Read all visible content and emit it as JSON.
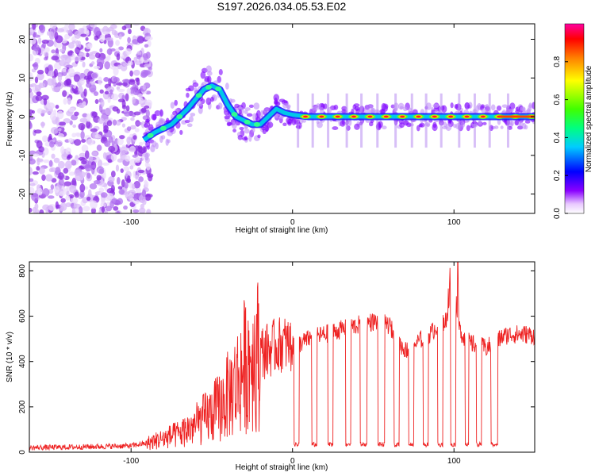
{
  "title": "S197.2026.034.05.53.E02",
  "colors": {
    "trace": "#ee2222",
    "axis": "#000000",
    "background": "#ffffff"
  },
  "chart_data": [
    {
      "type": "heatmap",
      "name": "spectrogram",
      "xlabel": "Height of straight line (km)",
      "ylabel": "Frequency (Hz)",
      "xlim": [
        -163,
        150
      ],
      "ylim": [
        -25,
        24
      ],
      "xticks": [
        -100,
        0,
        100
      ],
      "xtick_labels": [
        "-100",
        "0",
        "100"
      ],
      "yticks": [
        -20,
        -10,
        0,
        10,
        20
      ],
      "ytick_labels": [
        "-20",
        "-10",
        "0",
        "10",
        "20"
      ],
      "colorbar": {
        "label": "Normalized spectral amplitude",
        "range": [
          0,
          1
        ],
        "ticks": [
          0.0,
          0.2,
          0.4,
          0.6,
          0.8
        ],
        "tick_labels": [
          "0.0",
          "0.2",
          "0.4",
          "0.6",
          "0.8"
        ]
      },
      "ridge": {
        "description": "dominant frequency ridge",
        "x": [
          -92,
          -85,
          -75,
          -65,
          -55,
          -50,
          -45,
          -40,
          -35,
          -30,
          -25,
          -20,
          -15,
          -10,
          -5,
          0,
          10,
          20,
          30,
          40,
          50,
          60,
          70,
          80,
          90,
          100,
          110,
          120,
          130,
          140,
          150
        ],
        "y": [
          -6,
          -4,
          -2,
          2,
          7,
          8,
          7,
          3,
          0,
          -1,
          -2,
          -2,
          0,
          2,
          1,
          0.5,
          0,
          0,
          0,
          0,
          0,
          0,
          0,
          0,
          0,
          0,
          0,
          0,
          0,
          0,
          0
        ]
      },
      "noise_region_x": [
        -163,
        -88
      ]
    },
    {
      "type": "line",
      "name": "snr",
      "xlabel": "Height of straight line (km)",
      "ylabel": "SNR (10 * v/v)",
      "xlim": [
        -163,
        150
      ],
      "ylim": [
        0,
        840
      ],
      "xticks": [
        -100,
        0,
        100
      ],
      "xtick_labels": [
        "-100",
        "0",
        "100"
      ],
      "yticks": [
        0,
        200,
        400,
        600,
        800
      ],
      "ytick_labels": [
        "0",
        "200",
        "400",
        "600",
        "800"
      ],
      "series": [
        {
          "name": "SNR",
          "x": [
            -163,
            -140,
            -120,
            -100,
            -90,
            -80,
            -70,
            -60,
            -50,
            -45,
            -40,
            -35,
            -30,
            -25,
            -20,
            -15,
            -10,
            -5,
            0,
            5,
            10,
            15,
            20,
            25,
            30,
            35,
            40,
            45,
            50,
            55,
            60,
            65,
            70,
            75,
            80,
            85,
            90,
            95,
            100,
            105,
            110,
            115,
            120,
            125,
            130,
            135,
            140,
            145,
            150
          ],
          "values": [
            20,
            22,
            25,
            28,
            40,
            60,
            80,
            120,
            170,
            200,
            250,
            300,
            380,
            420,
            440,
            450,
            470,
            480,
            470,
            480,
            500,
            510,
            520,
            530,
            540,
            550,
            560,
            570,
            575,
            570,
            560,
            490,
            450,
            470,
            500,
            520,
            560,
            580,
            600,
            520,
            480,
            470,
            460,
            480,
            510,
            520,
            520,
            520,
            515
          ]
        }
      ],
      "dropouts": [
        {
          "from": 1,
          "to": 4,
          "level": 30
        },
        {
          "from": 12,
          "to": 15,
          "level": 30
        },
        {
          "from": 22,
          "to": 25,
          "level": 30
        },
        {
          "from": 33,
          "to": 36,
          "level": 30
        },
        {
          "from": 42,
          "to": 46,
          "level": 30
        },
        {
          "from": 53,
          "to": 57,
          "level": 30
        },
        {
          "from": 63,
          "to": 66,
          "level": 30
        },
        {
          "from": 72,
          "to": 75,
          "level": 30
        },
        {
          "from": 81,
          "to": 84,
          "level": 30
        },
        {
          "from": 90,
          "to": 93,
          "level": 30
        },
        {
          "from": 98,
          "to": 101,
          "level": 30
        },
        {
          "from": 107,
          "to": 109,
          "level": 30
        },
        {
          "from": 114,
          "to": 117,
          "level": 30
        },
        {
          "from": 123,
          "to": 127,
          "level": 30
        }
      ],
      "spikes": [
        {
          "x": 97,
          "value": 840
        },
        {
          "x": 102,
          "value": 840
        }
      ]
    }
  ]
}
